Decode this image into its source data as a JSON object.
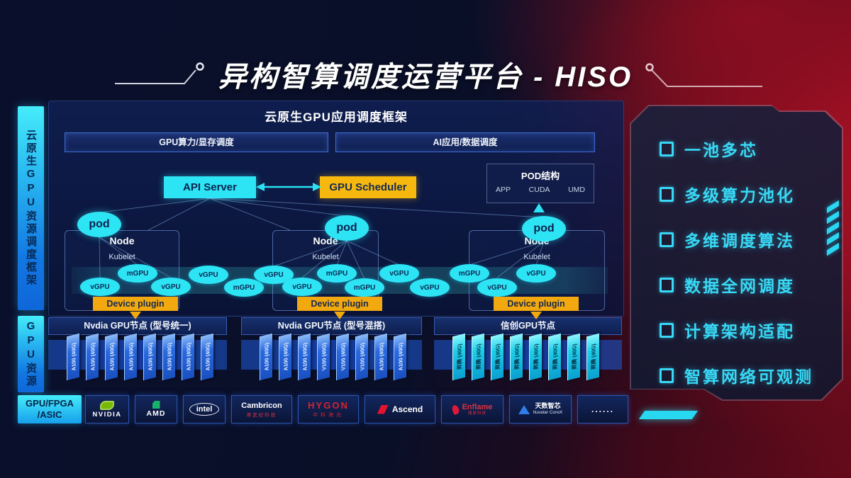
{
  "title": {
    "text": "异构智算调度运营平台 - HISO"
  },
  "sidebar": {
    "framework_label": "云原生GPU资源调度框架",
    "gpu_resources_label": "GPU资源"
  },
  "framework": {
    "header": "云原生GPU应用调度框架",
    "scheduler_bars": [
      "GPU算力/显存调度",
      "AI应用/数据调度"
    ],
    "api_server_label": "API Server",
    "gpu_scheduler_label": "GPU Scheduler",
    "pod_structure": {
      "title": "POD结构",
      "items": [
        "APP",
        "CUDA",
        "UMD"
      ]
    },
    "nodes": [
      {
        "label": "Node",
        "kubelet": "Kubelet",
        "pod": "pod",
        "device_plugin": "Device plugin"
      },
      {
        "label": "Node",
        "kubelet": "Kubelet",
        "pod": "pod",
        "device_plugin": "Device plugin"
      },
      {
        "label": "Node",
        "kubelet": "Kubelet",
        "pod": "pod",
        "device_plugin": "Device plugin"
      }
    ],
    "gpu_ellipses": [
      "vGPU",
      "mGPU",
      "vGPU",
      "vGPU",
      "mGPU",
      "vGPU",
      "vGPU",
      "mGPU",
      "mGPU",
      "vGPU",
      "vGPU",
      "mGPU",
      "vGPU",
      "vGPU"
    ]
  },
  "gpu_sections": [
    {
      "header": "Nvdia GPU节点 (型号统一)",
      "style": "blue",
      "cards": [
        "A100 (40G)",
        "A100 (40G)",
        "A100 (40G)",
        "A100 (40G)",
        "A100 (40G)",
        "A100 (40G)",
        "A100 (40G)",
        "A100 (40G)"
      ]
    },
    {
      "header": "Nvdia GPU节点 (型号混搭)",
      "style": "blue",
      "cards": [
        "A100 (40G)",
        "A100 (40G)",
        "A100 (40G)",
        "V100 (40G)",
        "V100 (40G)",
        "V100 (40G)",
        "A100 (40G)",
        "A100 (40G)"
      ]
    },
    {
      "header": "信创GPU节点",
      "style": "cyan",
      "cards": [
        "昇腾 (40G)",
        "昇腾 (40G)",
        "昇腾 (40G)",
        "昇腾 (40G)",
        "昇腾 (40G)",
        "昇腾 (40G)",
        "昇腾 (40G)",
        "昇腾 (40G)"
      ]
    }
  ],
  "hardware_bar": {
    "label_line1": "GPU/FPGA",
    "label_line2": "/ASIC",
    "vendors": [
      {
        "id": "nvidia",
        "name": "NVIDIA"
      },
      {
        "id": "amd",
        "name": "AMD"
      },
      {
        "id": "intel",
        "name": "intel"
      },
      {
        "id": "cambricon",
        "name": "Cambricon",
        "sub": "寒武纪科技"
      },
      {
        "id": "hygon",
        "name": "HYGON",
        "sub": "中科海光"
      },
      {
        "id": "ascend",
        "name": "Ascend"
      },
      {
        "id": "enflame",
        "name": "Enflame",
        "sub": "燧原科技"
      },
      {
        "id": "iluvatar",
        "name": "天数智芯",
        "sub": "Iluvatar CoreX"
      },
      {
        "id": "more",
        "name": "......"
      }
    ]
  },
  "features": [
    "一池多芯",
    "多级算力池化",
    "多维调度算法",
    "数据全网调度",
    "计算架构适配",
    "智算网络可观测"
  ],
  "colors": {
    "accent_cyan": "#2de4f4",
    "accent_yellow": "#f6b70e",
    "card_blue": "#2a6ae0",
    "card_cyan": "#1ecfe8",
    "bg_red": "#9e1023",
    "bg_navy": "#0a102c"
  }
}
